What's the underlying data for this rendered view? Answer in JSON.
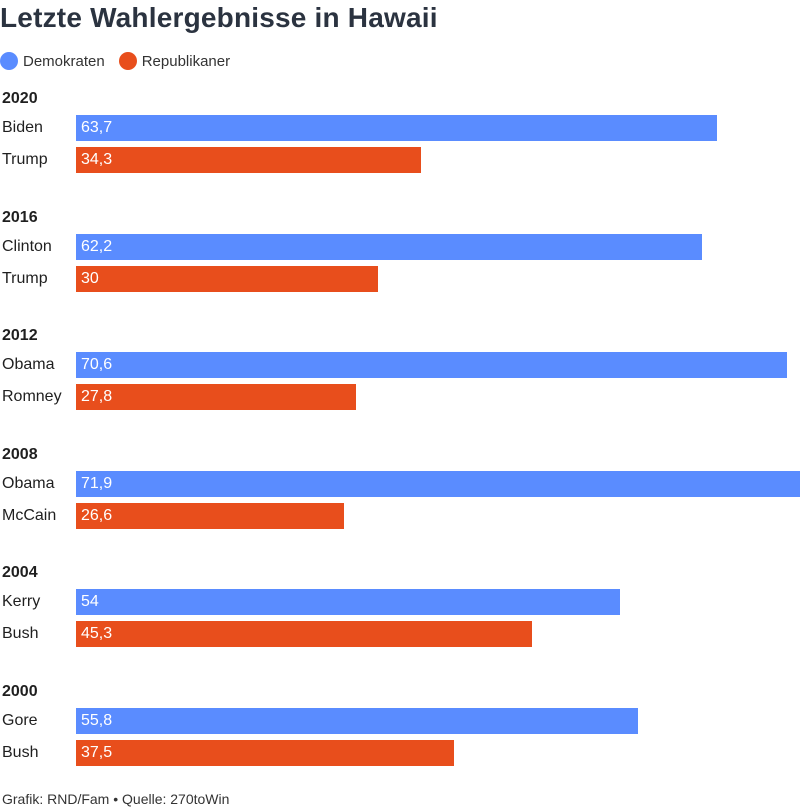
{
  "chart_data": {
    "type": "bar",
    "orientation": "horizontal",
    "title": "Letzte Wahlergebnisse in Hawaii",
    "legend": [
      {
        "name": "Demokraten",
        "color": "#5a8cff"
      },
      {
        "name": "Republikaner",
        "color": "#e84e1c"
      }
    ],
    "xlim": [
      0,
      71.9
    ],
    "groups": [
      {
        "year": "2020",
        "bars": [
          {
            "candidate": "Biden",
            "party": "Demokraten",
            "value": 63.7,
            "label": "63,7"
          },
          {
            "candidate": "Trump",
            "party": "Republikaner",
            "value": 34.3,
            "label": "34,3"
          }
        ]
      },
      {
        "year": "2016",
        "bars": [
          {
            "candidate": "Clinton",
            "party": "Demokraten",
            "value": 62.2,
            "label": "62,2"
          },
          {
            "candidate": "Trump",
            "party": "Republikaner",
            "value": 30,
            "label": "30"
          }
        ]
      },
      {
        "year": "2012",
        "bars": [
          {
            "candidate": "Obama",
            "party": "Demokraten",
            "value": 70.6,
            "label": "70,6"
          },
          {
            "candidate": "Romney",
            "party": "Republikaner",
            "value": 27.8,
            "label": "27,8"
          }
        ]
      },
      {
        "year": "2008",
        "bars": [
          {
            "candidate": "Obama",
            "party": "Demokraten",
            "value": 71.9,
            "label": "71,9"
          },
          {
            "candidate": "McCain",
            "party": "Republikaner",
            "value": 26.6,
            "label": "26,6"
          }
        ]
      },
      {
        "year": "2004",
        "bars": [
          {
            "candidate": "Kerry",
            "party": "Demokraten",
            "value": 54,
            "label": "54"
          },
          {
            "candidate": "Bush",
            "party": "Republikaner",
            "value": 45.3,
            "label": "45,3"
          }
        ]
      },
      {
        "year": "2000",
        "bars": [
          {
            "candidate": "Gore",
            "party": "Demokraten",
            "value": 55.8,
            "label": "55,8"
          },
          {
            "candidate": "Bush",
            "party": "Republikaner",
            "value": 37.5,
            "label": "37,5"
          }
        ]
      }
    ]
  },
  "footer": "Grafik: RND/Fam • Quelle: 270toWin"
}
